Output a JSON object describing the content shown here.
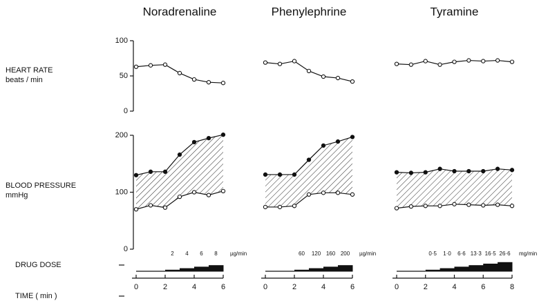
{
  "row_labels": {
    "heart_rate": "HEART RATE",
    "heart_rate_unit": "beats / min",
    "blood_pressure": "BLOOD PRESSURE",
    "blood_pressure_unit": "mmHg",
    "drug_dose": "DRUG DOSE",
    "time": "TIME ( min )"
  },
  "axes": {
    "hr_ylim": [
      0,
      100
    ],
    "hr_yticks": [
      0,
      50,
      100
    ],
    "bp_ylim": [
      0,
      200
    ],
    "bp_yticks": [
      0,
      100,
      200
    ]
  },
  "chart_data": [
    {
      "type": "line",
      "title": "Noradrenaline",
      "x": [
        0,
        1,
        2,
        3,
        4,
        5,
        6
      ],
      "xlim": [
        0,
        6
      ],
      "xticks": [
        0,
        2,
        4,
        6
      ],
      "heart_rate": [
        63,
        65,
        66,
        54,
        45,
        41,
        40
      ],
      "bp_upper": [
        130,
        136,
        136,
        166,
        188,
        195,
        201
      ],
      "bp_lower": [
        70,
        77,
        73,
        92,
        100,
        95,
        102
      ],
      "doses": [
        "2",
        "4",
        "6",
        "8"
      ],
      "dose_unit": "µg/min"
    },
    {
      "type": "line",
      "title": "Phenylephrine",
      "x": [
        0,
        1,
        2,
        3,
        4,
        5,
        6
      ],
      "xlim": [
        0,
        6
      ],
      "xticks": [
        0,
        2,
        4,
        6
      ],
      "heart_rate": [
        69,
        67,
        71,
        57,
        49,
        47,
        42
      ],
      "bp_upper": [
        131,
        131,
        131,
        157,
        182,
        189,
        197
      ],
      "bp_lower": [
        74,
        74,
        76,
        96,
        99,
        99,
        96
      ],
      "doses": [
        "60",
        "120",
        "160",
        "200"
      ],
      "dose_unit": "µg/min"
    },
    {
      "type": "line",
      "title": "Tyramine",
      "x": [
        0,
        1,
        2,
        3,
        4,
        5,
        6,
        7,
        8
      ],
      "xlim": [
        0,
        8
      ],
      "xticks": [
        0,
        2,
        4,
        6,
        8
      ],
      "heart_rate": [
        67,
        66,
        71,
        66,
        70,
        72,
        71,
        72,
        70
      ],
      "bp_upper": [
        135,
        134,
        135,
        141,
        137,
        137,
        137,
        141,
        139
      ],
      "bp_lower": [
        72,
        75,
        76,
        76,
        79,
        78,
        77,
        78,
        76
      ],
      "doses": [
        "0·5",
        "1·0",
        "6·6",
        "13·3",
        "16·5",
        "26·6"
      ],
      "dose_unit": "mg/min"
    }
  ]
}
